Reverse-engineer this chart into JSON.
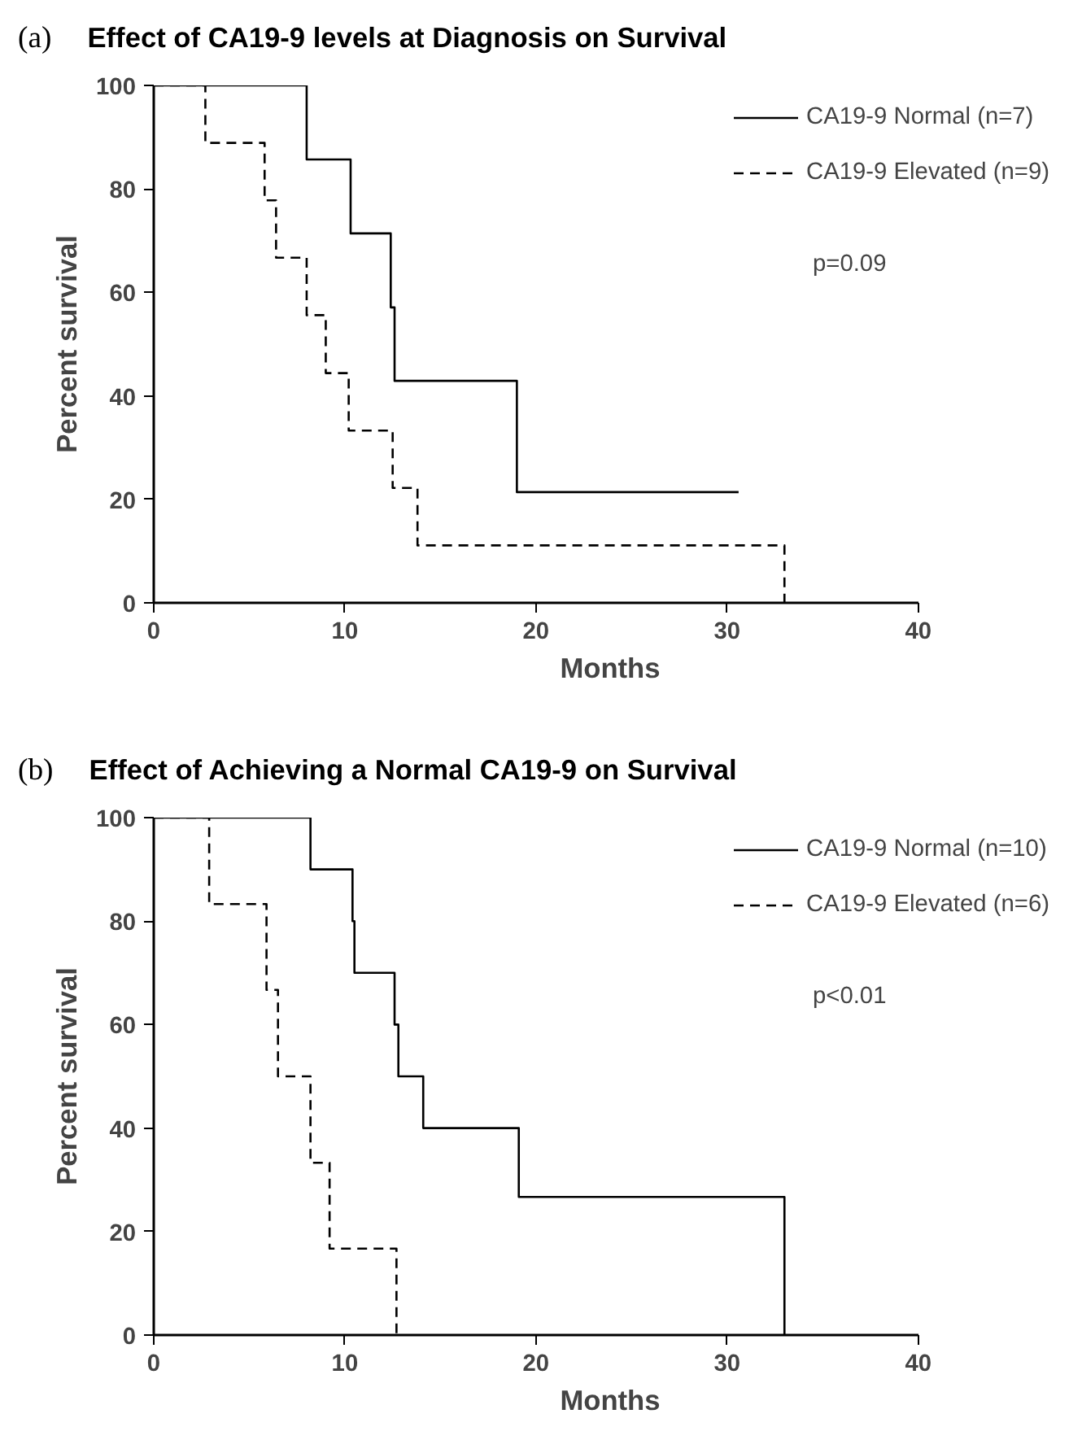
{
  "chart_data": [
    {
      "type": "step",
      "title": "Effect of CA19-9 levels at Diagnosis on Survival",
      "xlabel": "Months",
      "ylabel": "Percent survival",
      "annotations": [
        "(a)",
        "p=0.09"
      ],
      "series": [
        {
          "name": "CA19-9 Normal (n=7)",
          "color": "#000000",
          "line_style": "solid",
          "x": [
            0,
            8.0,
            10.3,
            12.4,
            12.6,
            19.0,
            30.6
          ],
          "values": [
            100,
            85.7,
            71.4,
            57.1,
            42.9,
            21.4,
            21.4
          ]
        },
        {
          "name": "CA19-9 Elevated (n=9)",
          "color": "#000000",
          "line_style": "dashed",
          "x": [
            0,
            2.7,
            5.8,
            6.4,
            8.0,
            9.0,
            10.2,
            12.5,
            13.8,
            33.0
          ],
          "values": [
            100,
            88.9,
            77.8,
            66.7,
            55.6,
            44.4,
            33.3,
            22.2,
            11.1,
            0
          ]
        }
      ],
      "xlim": [
        0,
        40
      ],
      "xticks": [
        0,
        10,
        20,
        30,
        40
      ],
      "ylim": [
        0,
        100
      ],
      "yticks": [
        0,
        20,
        40,
        60,
        80,
        100
      ],
      "grid": false,
      "legend": "top right"
    },
    {
      "type": "step",
      "title": "Effect of Achieving a Normal CA19-9 on Survival",
      "xlabel": "Months",
      "ylabel": "Percent survival",
      "annotations": [
        "(b)",
        "p<0.01"
      ],
      "series": [
        {
          "name": "CA19-9 Normal (n=10)",
          "color": "#000000",
          "line_style": "solid",
          "x": [
            0,
            8.2,
            10.4,
            10.5,
            12.6,
            12.8,
            14.1,
            19.1,
            33.0
          ],
          "values": [
            100,
            90,
            80,
            70,
            60,
            50,
            40,
            26.7,
            0
          ]
        },
        {
          "name": "CA19-9 Elevated (n=6)",
          "color": "#000000",
          "line_style": "dashed",
          "x": [
            0,
            2.9,
            5.9,
            6.5,
            8.2,
            9.2,
            12.7
          ],
          "values": [
            100,
            83.3,
            66.7,
            50,
            33.3,
            16.7,
            0
          ]
        }
      ],
      "xlim": [
        0,
        40
      ],
      "xticks": [
        0,
        10,
        20,
        30,
        40
      ],
      "ylim": [
        0,
        100
      ],
      "yticks": [
        0,
        20,
        40,
        60,
        80,
        100
      ],
      "grid": false,
      "legend": "top right"
    }
  ]
}
